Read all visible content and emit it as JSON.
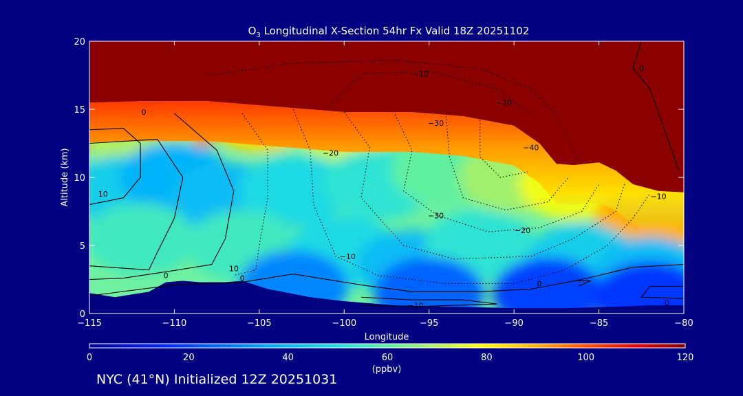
{
  "chart_data": {
    "type": "heatmap",
    "title_main": "O",
    "title_sub": "3",
    "title_rest": " Longitudinal X-Section 54hr  Fx Valid 18Z 20251102",
    "xlabel": "Longitude",
    "ylabel": "Altitude (km)",
    "xlim": [
      -115,
      -80
    ],
    "ylim": [
      0,
      20
    ],
    "x_ticks": [
      -115,
      -110,
      -105,
      -100,
      -95,
      -90,
      -85,
      -80
    ],
    "x_tick_labels": [
      "−115",
      "−110",
      "−105",
      "−100",
      "−95",
      "−90",
      "−85",
      "−80"
    ],
    "y_ticks": [
      0,
      5,
      10,
      15,
      20
    ],
    "y_tick_labels": [
      "0",
      "5",
      "10",
      "15",
      "20"
    ],
    "colorbar": {
      "label": "(ppbv)",
      "min": 0,
      "max": 120,
      "ticks": [
        0,
        20,
        40,
        60,
        80,
        100,
        120
      ],
      "tick_labels": [
        "0",
        "20",
        "40",
        "60",
        "80",
        "100",
        "120"
      ]
    },
    "terrain": [
      [
        -115,
        1.5
      ],
      [
        -113.5,
        1.2
      ],
      [
        -112.5,
        1.4
      ],
      [
        -111.5,
        1.6
      ],
      [
        -110.5,
        2.3
      ],
      [
        -109.5,
        2.4
      ],
      [
        -108.5,
        2.3
      ],
      [
        -107,
        2.3
      ],
      [
        -106,
        2.4
      ],
      [
        -104.5,
        1.8
      ],
      [
        -102,
        1.2
      ],
      [
        -100,
        0.9
      ],
      [
        -97,
        0.6
      ],
      [
        -94,
        0.5
      ],
      [
        -90,
        0.4
      ],
      [
        -87,
        0.4
      ],
      [
        -84,
        0.5
      ],
      [
        -82,
        0.6
      ],
      [
        -80,
        0.6
      ]
    ],
    "tropopause": [
      [
        -115,
        15.5
      ],
      [
        -112,
        15.6
      ],
      [
        -108,
        15.6
      ],
      [
        -104,
        15.2
      ],
      [
        -100,
        14.8
      ],
      [
        -96,
        14.8
      ],
      [
        -93,
        14.5
      ],
      [
        -90,
        13.8
      ],
      [
        -88.5,
        12.5
      ],
      [
        -87.5,
        11
      ],
      [
        -86.5,
        10.9
      ],
      [
        -85,
        11.1
      ],
      [
        -84,
        10.5
      ],
      [
        -83,
        9.5
      ],
      [
        -81.5,
        9
      ],
      [
        -80,
        8.9
      ]
    ],
    "fields": {
      "ozone_ppbv": [
        {
          "x": -114,
          "y": 14.5,
          "value": 100
        },
        {
          "x": -110,
          "y": 14.5,
          "value": 95
        },
        {
          "x": -105,
          "y": 14.5,
          "value": 85
        },
        {
          "x": -100,
          "y": 14.0,
          "value": 75
        },
        {
          "x": -112,
          "y": 13.0,
          "value": 70
        },
        {
          "x": -113,
          "y": 9.0,
          "value": 45
        },
        {
          "x": -110,
          "y": 10.0,
          "value": 38
        },
        {
          "x": -107,
          "y": 8.5,
          "value": 40
        },
        {
          "x": -103,
          "y": 9.0,
          "value": 48
        },
        {
          "x": -98,
          "y": 9.5,
          "value": 52
        },
        {
          "x": -94,
          "y": 10.5,
          "value": 60
        },
        {
          "x": -90,
          "y": 10.0,
          "value": 68
        },
        {
          "x": -86.5,
          "y": 9.5,
          "value": 78
        },
        {
          "x": -82,
          "y": 7.0,
          "value": 90
        },
        {
          "x": -112,
          "y": 5.5,
          "value": 55
        },
        {
          "x": -106,
          "y": 5.0,
          "value": 55
        },
        {
          "x": -100,
          "y": 4.5,
          "value": 48
        },
        {
          "x": -96,
          "y": 3.5,
          "value": 40
        },
        {
          "x": -92,
          "y": 5.0,
          "value": 52
        },
        {
          "x": -86,
          "y": 4.0,
          "value": 45
        },
        {
          "x": -82,
          "y": 3.0,
          "value": 40
        },
        {
          "x": -103,
          "y": 2.0,
          "value": 30
        },
        {
          "x": -95,
          "y": 1.5,
          "value": 25
        },
        {
          "x": -88,
          "y": 1.5,
          "value": 20
        },
        {
          "x": -82,
          "y": 1.2,
          "value": 18
        }
      ]
    },
    "contour_labels": [
      {
        "text": "0",
        "x": -111.8,
        "y": 14.8
      },
      {
        "text": "0",
        "x": -110.5,
        "y": 2.8
      },
      {
        "text": "0",
        "x": -106,
        "y": 2.6
      },
      {
        "text": "0",
        "x": -88.5,
        "y": 2.2
      },
      {
        "text": "0",
        "x": -81,
        "y": 0.8
      },
      {
        "text": "0",
        "x": -82.5,
        "y": 18.0
      },
      {
        "text": "10",
        "x": -114.2,
        "y": 8.8
      },
      {
        "text": "10",
        "x": -106.5,
        "y": 3.3
      },
      {
        "text": "−10",
        "x": -99.8,
        "y": 4.2
      },
      {
        "text": "−10",
        "x": -95.8,
        "y": 0.6
      },
      {
        "text": "−10",
        "x": -95.5,
        "y": 17.6
      },
      {
        "text": "−10",
        "x": -81.5,
        "y": 8.6
      },
      {
        "text": "−20",
        "x": -100.8,
        "y": 11.8
      },
      {
        "text": "−20",
        "x": -90.6,
        "y": 15.5
      },
      {
        "text": "−20",
        "x": -89.5,
        "y": 6.1
      },
      {
        "text": "−30",
        "x": -94.6,
        "y": 14.0
      },
      {
        "text": "−30",
        "x": -94.6,
        "y": 7.2
      },
      {
        "text": "−40",
        "x": -89,
        "y": 12.2
      }
    ]
  },
  "footer": {
    "text": "NYC (41°N) Initialized 12Z 20251031"
  }
}
